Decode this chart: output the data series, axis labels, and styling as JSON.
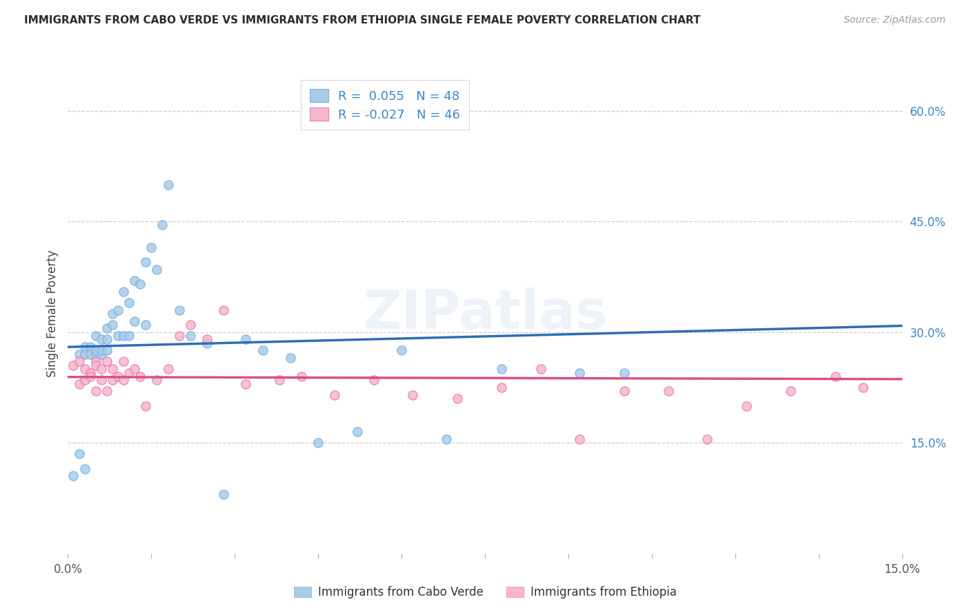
{
  "title": "IMMIGRANTS FROM CABO VERDE VS IMMIGRANTS FROM ETHIOPIA SINGLE FEMALE POVERTY CORRELATION CHART",
  "source": "Source: ZipAtlas.com",
  "ylabel": "Single Female Poverty",
  "xlim": [
    0.0,
    0.15
  ],
  "ylim": [
    0.0,
    0.65
  ],
  "cabo_verde_color": "#a8cce8",
  "cabo_verde_edge": "#7aafe0",
  "ethiopia_color": "#f5b8d0",
  "ethiopia_edge": "#e87aab",
  "cabo_verde_line_color": "#2e6db4",
  "ethiopia_line_color": "#d94f8a",
  "cabo_verde_R": 0.055,
  "cabo_verde_N": 48,
  "ethiopia_R": -0.027,
  "ethiopia_N": 46,
  "watermark": "ZIPatlas",
  "legend_cabo_label": "Immigrants from Cabo Verde",
  "legend_ethiopia_label": "Immigrants from Ethiopia",
  "ytick_vals": [
    0.15,
    0.3,
    0.45,
    0.6
  ],
  "ytick_labels": [
    "15.0%",
    "30.0%",
    "45.0%",
    "60.0%"
  ],
  "cabo_verde_x": [
    0.001,
    0.002,
    0.002,
    0.003,
    0.003,
    0.003,
    0.004,
    0.004,
    0.005,
    0.005,
    0.005,
    0.006,
    0.006,
    0.006,
    0.007,
    0.007,
    0.007,
    0.008,
    0.008,
    0.009,
    0.009,
    0.01,
    0.01,
    0.011,
    0.011,
    0.012,
    0.012,
    0.013,
    0.014,
    0.014,
    0.015,
    0.016,
    0.017,
    0.018,
    0.02,
    0.022,
    0.025,
    0.028,
    0.032,
    0.035,
    0.04,
    0.045,
    0.052,
    0.06,
    0.068,
    0.078,
    0.092,
    0.1
  ],
  "cabo_verde_y": [
    0.105,
    0.27,
    0.135,
    0.28,
    0.27,
    0.115,
    0.28,
    0.27,
    0.27,
    0.295,
    0.275,
    0.29,
    0.27,
    0.275,
    0.305,
    0.29,
    0.275,
    0.325,
    0.31,
    0.33,
    0.295,
    0.355,
    0.295,
    0.34,
    0.295,
    0.37,
    0.315,
    0.365,
    0.395,
    0.31,
    0.415,
    0.385,
    0.445,
    0.5,
    0.33,
    0.295,
    0.285,
    0.08,
    0.29,
    0.275,
    0.265,
    0.15,
    0.165,
    0.275,
    0.155,
    0.25,
    0.245,
    0.245
  ],
  "ethiopia_x": [
    0.001,
    0.002,
    0.002,
    0.003,
    0.003,
    0.004,
    0.004,
    0.005,
    0.005,
    0.005,
    0.006,
    0.006,
    0.007,
    0.007,
    0.008,
    0.008,
    0.009,
    0.01,
    0.01,
    0.011,
    0.012,
    0.013,
    0.014,
    0.016,
    0.018,
    0.02,
    0.022,
    0.025,
    0.028,
    0.032,
    0.038,
    0.042,
    0.048,
    0.055,
    0.062,
    0.07,
    0.078,
    0.085,
    0.092,
    0.1,
    0.108,
    0.115,
    0.122,
    0.13,
    0.138,
    0.143
  ],
  "ethiopia_y": [
    0.255,
    0.23,
    0.26,
    0.25,
    0.235,
    0.245,
    0.24,
    0.26,
    0.255,
    0.22,
    0.235,
    0.25,
    0.26,
    0.22,
    0.235,
    0.25,
    0.24,
    0.26,
    0.235,
    0.245,
    0.25,
    0.24,
    0.2,
    0.235,
    0.25,
    0.295,
    0.31,
    0.29,
    0.33,
    0.23,
    0.235,
    0.24,
    0.215,
    0.235,
    0.215,
    0.21,
    0.225,
    0.25,
    0.155,
    0.22,
    0.22,
    0.155,
    0.2,
    0.22,
    0.24,
    0.225
  ]
}
